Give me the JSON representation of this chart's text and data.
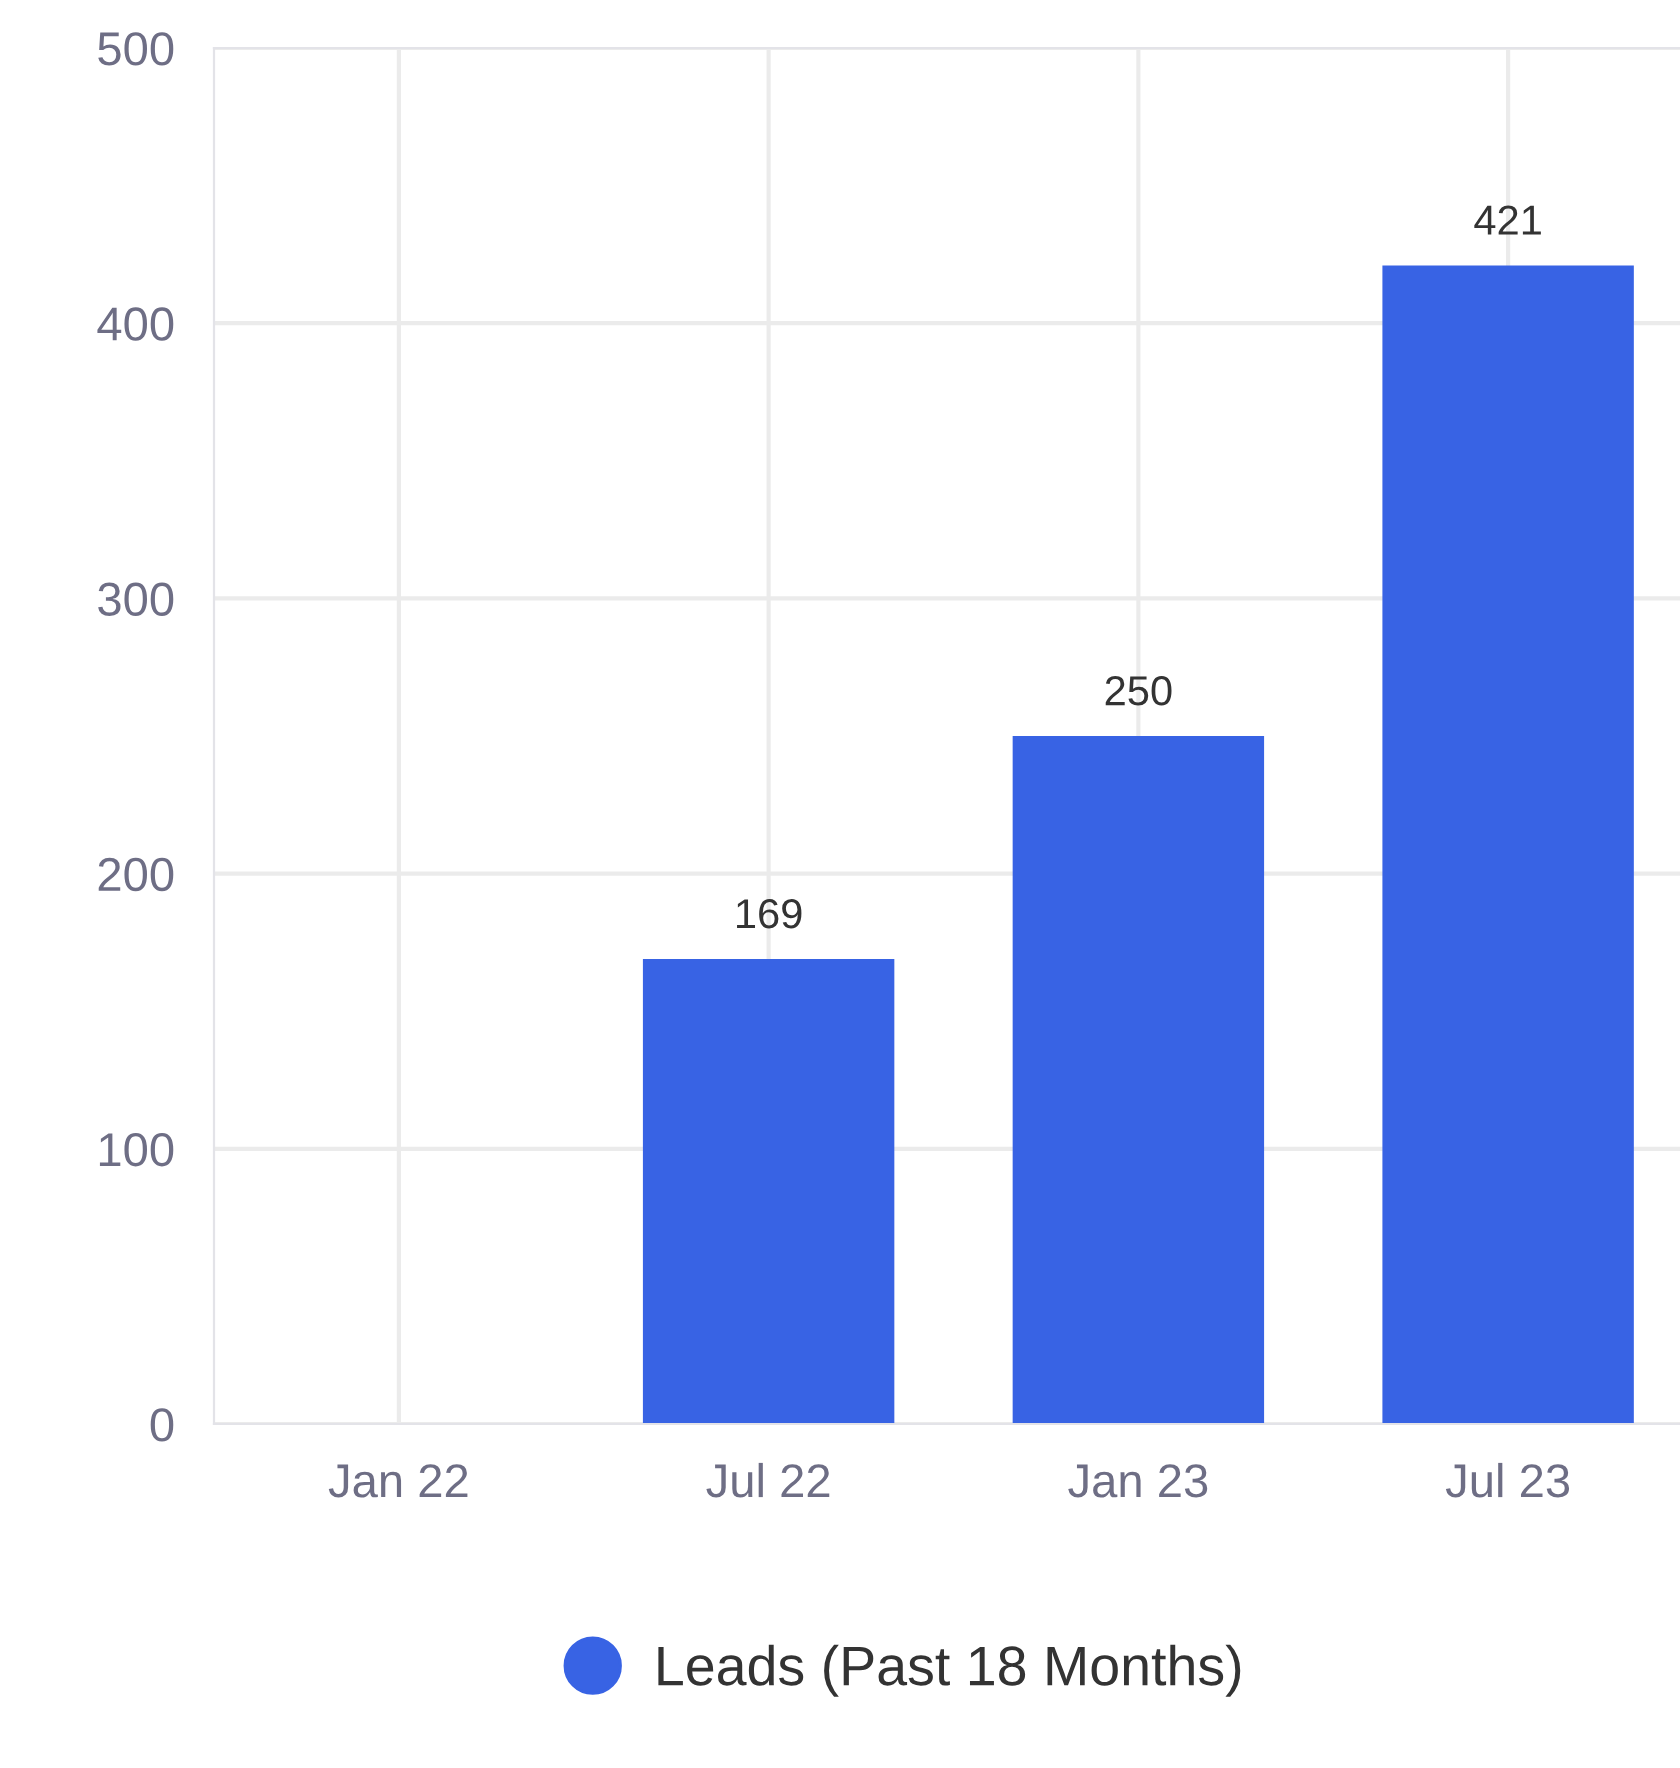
{
  "chart_data": {
    "type": "bar",
    "categories": [
      "Jan 22",
      "Jul 22",
      "Jan 23",
      "Jul 23"
    ],
    "series": [
      {
        "name": "Leads (Past 18 Months)",
        "color": "#3863e4",
        "values": [
          null,
          169,
          250,
          421
        ]
      }
    ],
    "ylim": [
      0,
      500
    ],
    "yticks": [
      0,
      100,
      200,
      300,
      400,
      500
    ],
    "grid": true,
    "legend": "bottom",
    "data_labels": true
  }
}
